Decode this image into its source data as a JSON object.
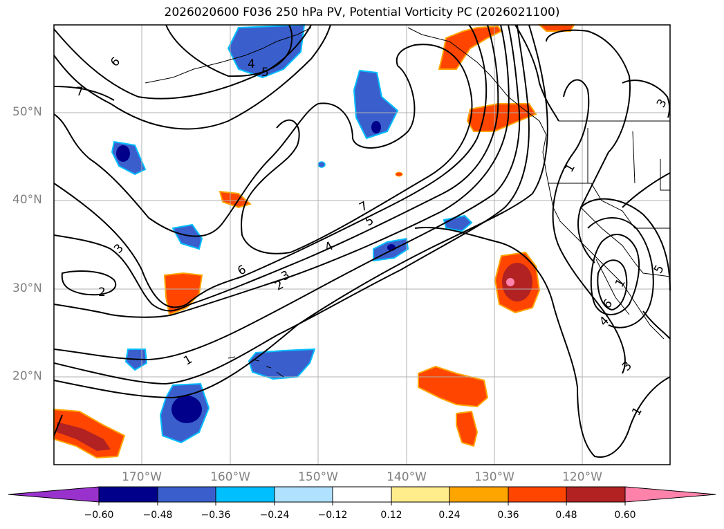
{
  "title": "2026020600 F036 250 hPa PV, Potential Vorticity PC (2026021100)",
  "lat_labels": [
    "50°N",
    "40°N",
    "30°N",
    "20°N"
  ],
  "lon_labels": [
    "170°W",
    "160°W",
    "150°W",
    "140°W",
    "130°W",
    "120°W"
  ],
  "colorbar": {
    "colors": [
      "#9932cc",
      "#00008b",
      "#3a5fcd",
      "#00bfff",
      "#b0e2ff",
      "#ffffff",
      "#ffec8b",
      "#ffa500",
      "#ff4500",
      "#b22222",
      "#ff82ab"
    ],
    "tick_labels": [
      "−0.60",
      "−0.48",
      "−0.36",
      "−0.24",
      "−0.12",
      "0.12",
      "0.24",
      "0.36",
      "0.48",
      "0.60"
    ]
  },
  "contour_labels": [
    "7",
    "6",
    "4",
    "5",
    "3",
    "2",
    "1",
    "7",
    "5",
    "4",
    "6",
    "3",
    "2",
    "1",
    "1",
    "3",
    "5",
    "6",
    "4",
    "3",
    "1"
  ]
}
